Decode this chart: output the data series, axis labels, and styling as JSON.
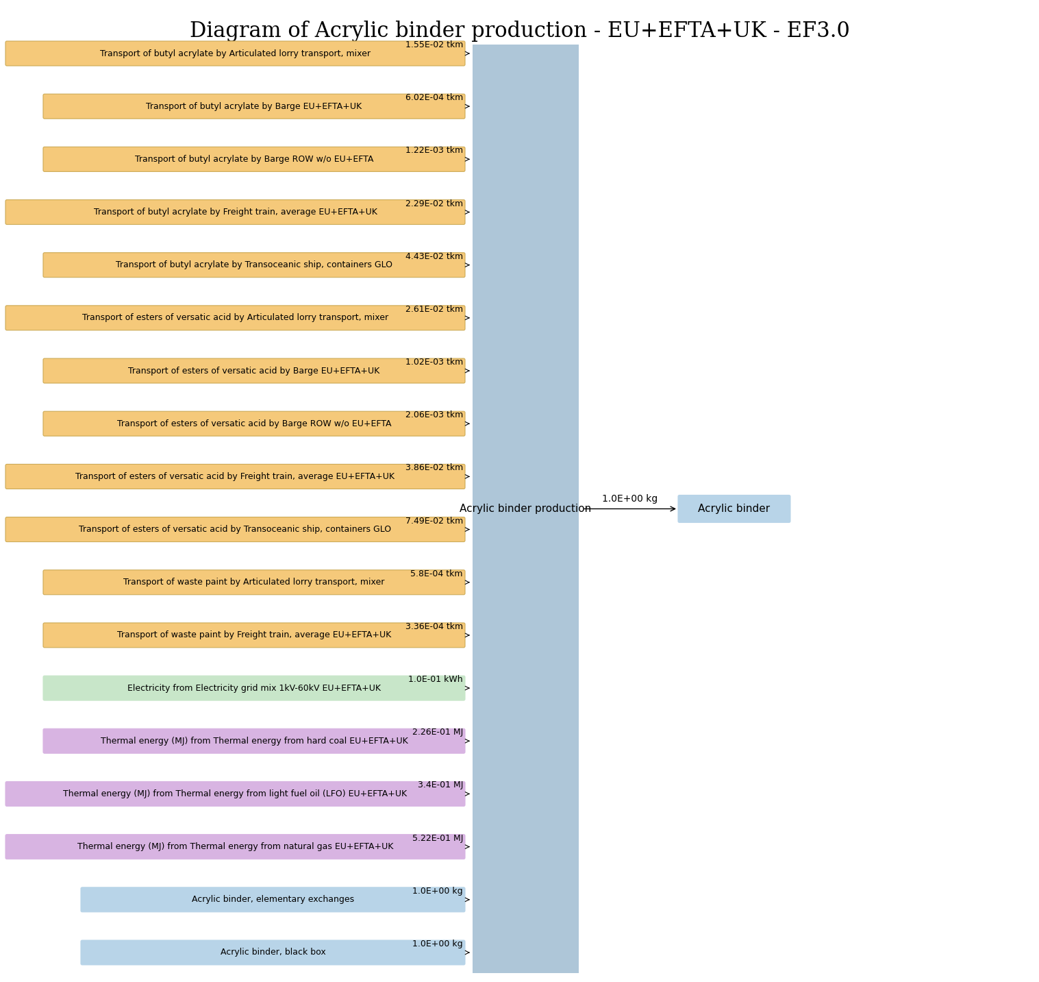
{
  "title": "Diagram of Acrylic binder production - EU+EFTA+UK - EF3.0",
  "title_fontsize": 20,
  "nodes": [
    {
      "label": "Transport of butyl acrylate by Articulated lorry transport, mixer",
      "color": "#f5c97a",
      "indent": 0
    },
    {
      "label": "Transport of butyl acrylate by Barge EU+EFTA+UK",
      "color": "#f5c97a",
      "indent": 1
    },
    {
      "label": "Transport of butyl acrylate by Barge ROW w/o EU+EFTA",
      "color": "#f5c97a",
      "indent": 1
    },
    {
      "label": "Transport of butyl acrylate by Freight train, average EU+EFTA+UK",
      "color": "#f5c97a",
      "indent": 0
    },
    {
      "label": "Transport of butyl acrylate by Transoceanic ship, containers GLO",
      "color": "#f5c97a",
      "indent": 1
    },
    {
      "label": "Transport of esters of versatic acid by Articulated lorry transport, mixer",
      "color": "#f5c97a",
      "indent": 0
    },
    {
      "label": "Transport of esters of versatic acid by Barge EU+EFTA+UK",
      "color": "#f5c97a",
      "indent": 1
    },
    {
      "label": "Transport of esters of versatic acid by Barge ROW w/o EU+EFTA",
      "color": "#f5c97a",
      "indent": 1
    },
    {
      "label": "Transport of esters of versatic acid by Freight train, average EU+EFTA+UK",
      "color": "#f5c97a",
      "indent": 0
    },
    {
      "label": "Transport of esters of versatic acid by Transoceanic ship, containers GLO",
      "color": "#f5c97a",
      "indent": 0
    },
    {
      "label": "Transport of waste paint by Articulated lorry transport, mixer",
      "color": "#f5c97a",
      "indent": 1
    },
    {
      "label": "Transport of waste paint by Freight train, average EU+EFTA+UK",
      "color": "#f5c97a",
      "indent": 1
    },
    {
      "label": "Electricity from Electricity grid mix 1kV-60kV EU+EFTA+UK",
      "color": "#c8e6c9",
      "indent": 1
    },
    {
      "label": "Thermal energy (MJ) from Thermal energy from hard coal EU+EFTA+UK",
      "color": "#d8b4e2",
      "indent": 1
    },
    {
      "label": "Thermal energy (MJ) from Thermal energy from light fuel oil (LFO) EU+EFTA+UK",
      "color": "#d8b4e2",
      "indent": 0
    },
    {
      "label": "Thermal energy (MJ) from Thermal energy from natural gas EU+EFTA+UK",
      "color": "#d8b4e2",
      "indent": 0
    },
    {
      "label": "Acrylic binder, elementary exchanges",
      "color": "#b8d4e8",
      "indent": 2
    },
    {
      "label": "Acrylic binder, black box",
      "color": "#b8d4e8",
      "indent": 2
    }
  ],
  "flow_labels": [
    "1.55E-02 tkm",
    "6.02E-04 tkm",
    "1.22E-03 tkm",
    "2.29E-02 tkm",
    "4.43E-02 tkm",
    "2.61E-02 tkm",
    "1.02E-03 tkm",
    "2.06E-03 tkm",
    "3.86E-02 tkm",
    "7.49E-02 tkm",
    "5.8E-04 tkm",
    "3.36E-04 tkm",
    "1.0E-01 kWh",
    "2.26E-01 MJ",
    "3.4E-01 MJ",
    "5.22E-01 MJ",
    "1.0E+00 kg",
    "1.0E+00 kg"
  ],
  "center_box_label": "Acrylic binder production",
  "center_box_color": "#aec6d8",
  "output_label": "1.0E+00 kg",
  "output_node_label": "Acrylic binder",
  "output_node_color": "#b8d4e8",
  "background_color": "#ffffff",
  "fig_width": 15.17,
  "fig_height": 14.33
}
